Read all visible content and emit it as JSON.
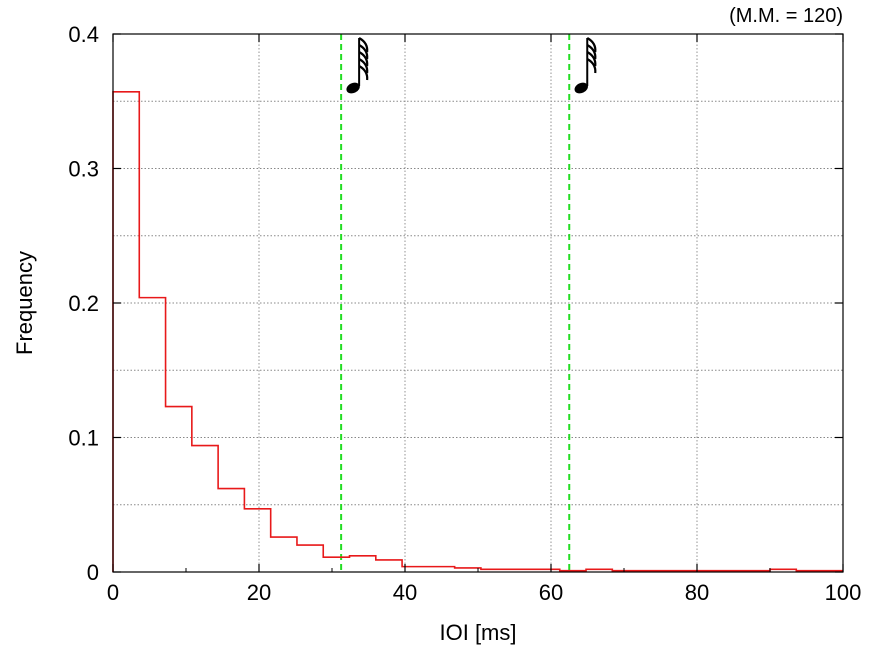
{
  "chart_data": {
    "type": "histogram",
    "xlabel": "IOI [ms]",
    "ylabel": "Frequency",
    "annotation": "(M.M. = 120)",
    "xlim": [
      0,
      100
    ],
    "ylim": [
      0,
      0.4
    ],
    "xticks": [
      0,
      20,
      40,
      60,
      80,
      100
    ],
    "xtick_labels": [
      "0",
      "20",
      "40",
      "60",
      "80",
      "100"
    ],
    "yticks": [
      0,
      0.1,
      0.2,
      0.3,
      0.4
    ],
    "ytick_labels": [
      "0",
      "0.1",
      "0.2",
      "0.3",
      "0.4"
    ],
    "y_minor_step": 0.05,
    "grid": true,
    "bin_width": 3.6,
    "bin_edges_start": 0,
    "values": [
      0.357,
      0.204,
      0.123,
      0.094,
      0.062,
      0.047,
      0.026,
      0.02,
      0.011,
      0.012,
      0.009,
      0.004,
      0.004,
      0.003,
      0.002,
      0.002,
      0.002,
      0.001,
      0.002,
      0.001,
      0.001,
      0.001,
      0.001,
      0.001,
      0.001,
      0.002,
      0.001,
      0.001
    ],
    "series_color": "#e8191a",
    "reference_lines": [
      {
        "x": 31.25,
        "marker": "thirty-second-note-icon",
        "color": "#22dd22"
      },
      {
        "x": 62.5,
        "marker": "sixty-fourth-note-icon",
        "color": "#22dd22"
      }
    ]
  }
}
